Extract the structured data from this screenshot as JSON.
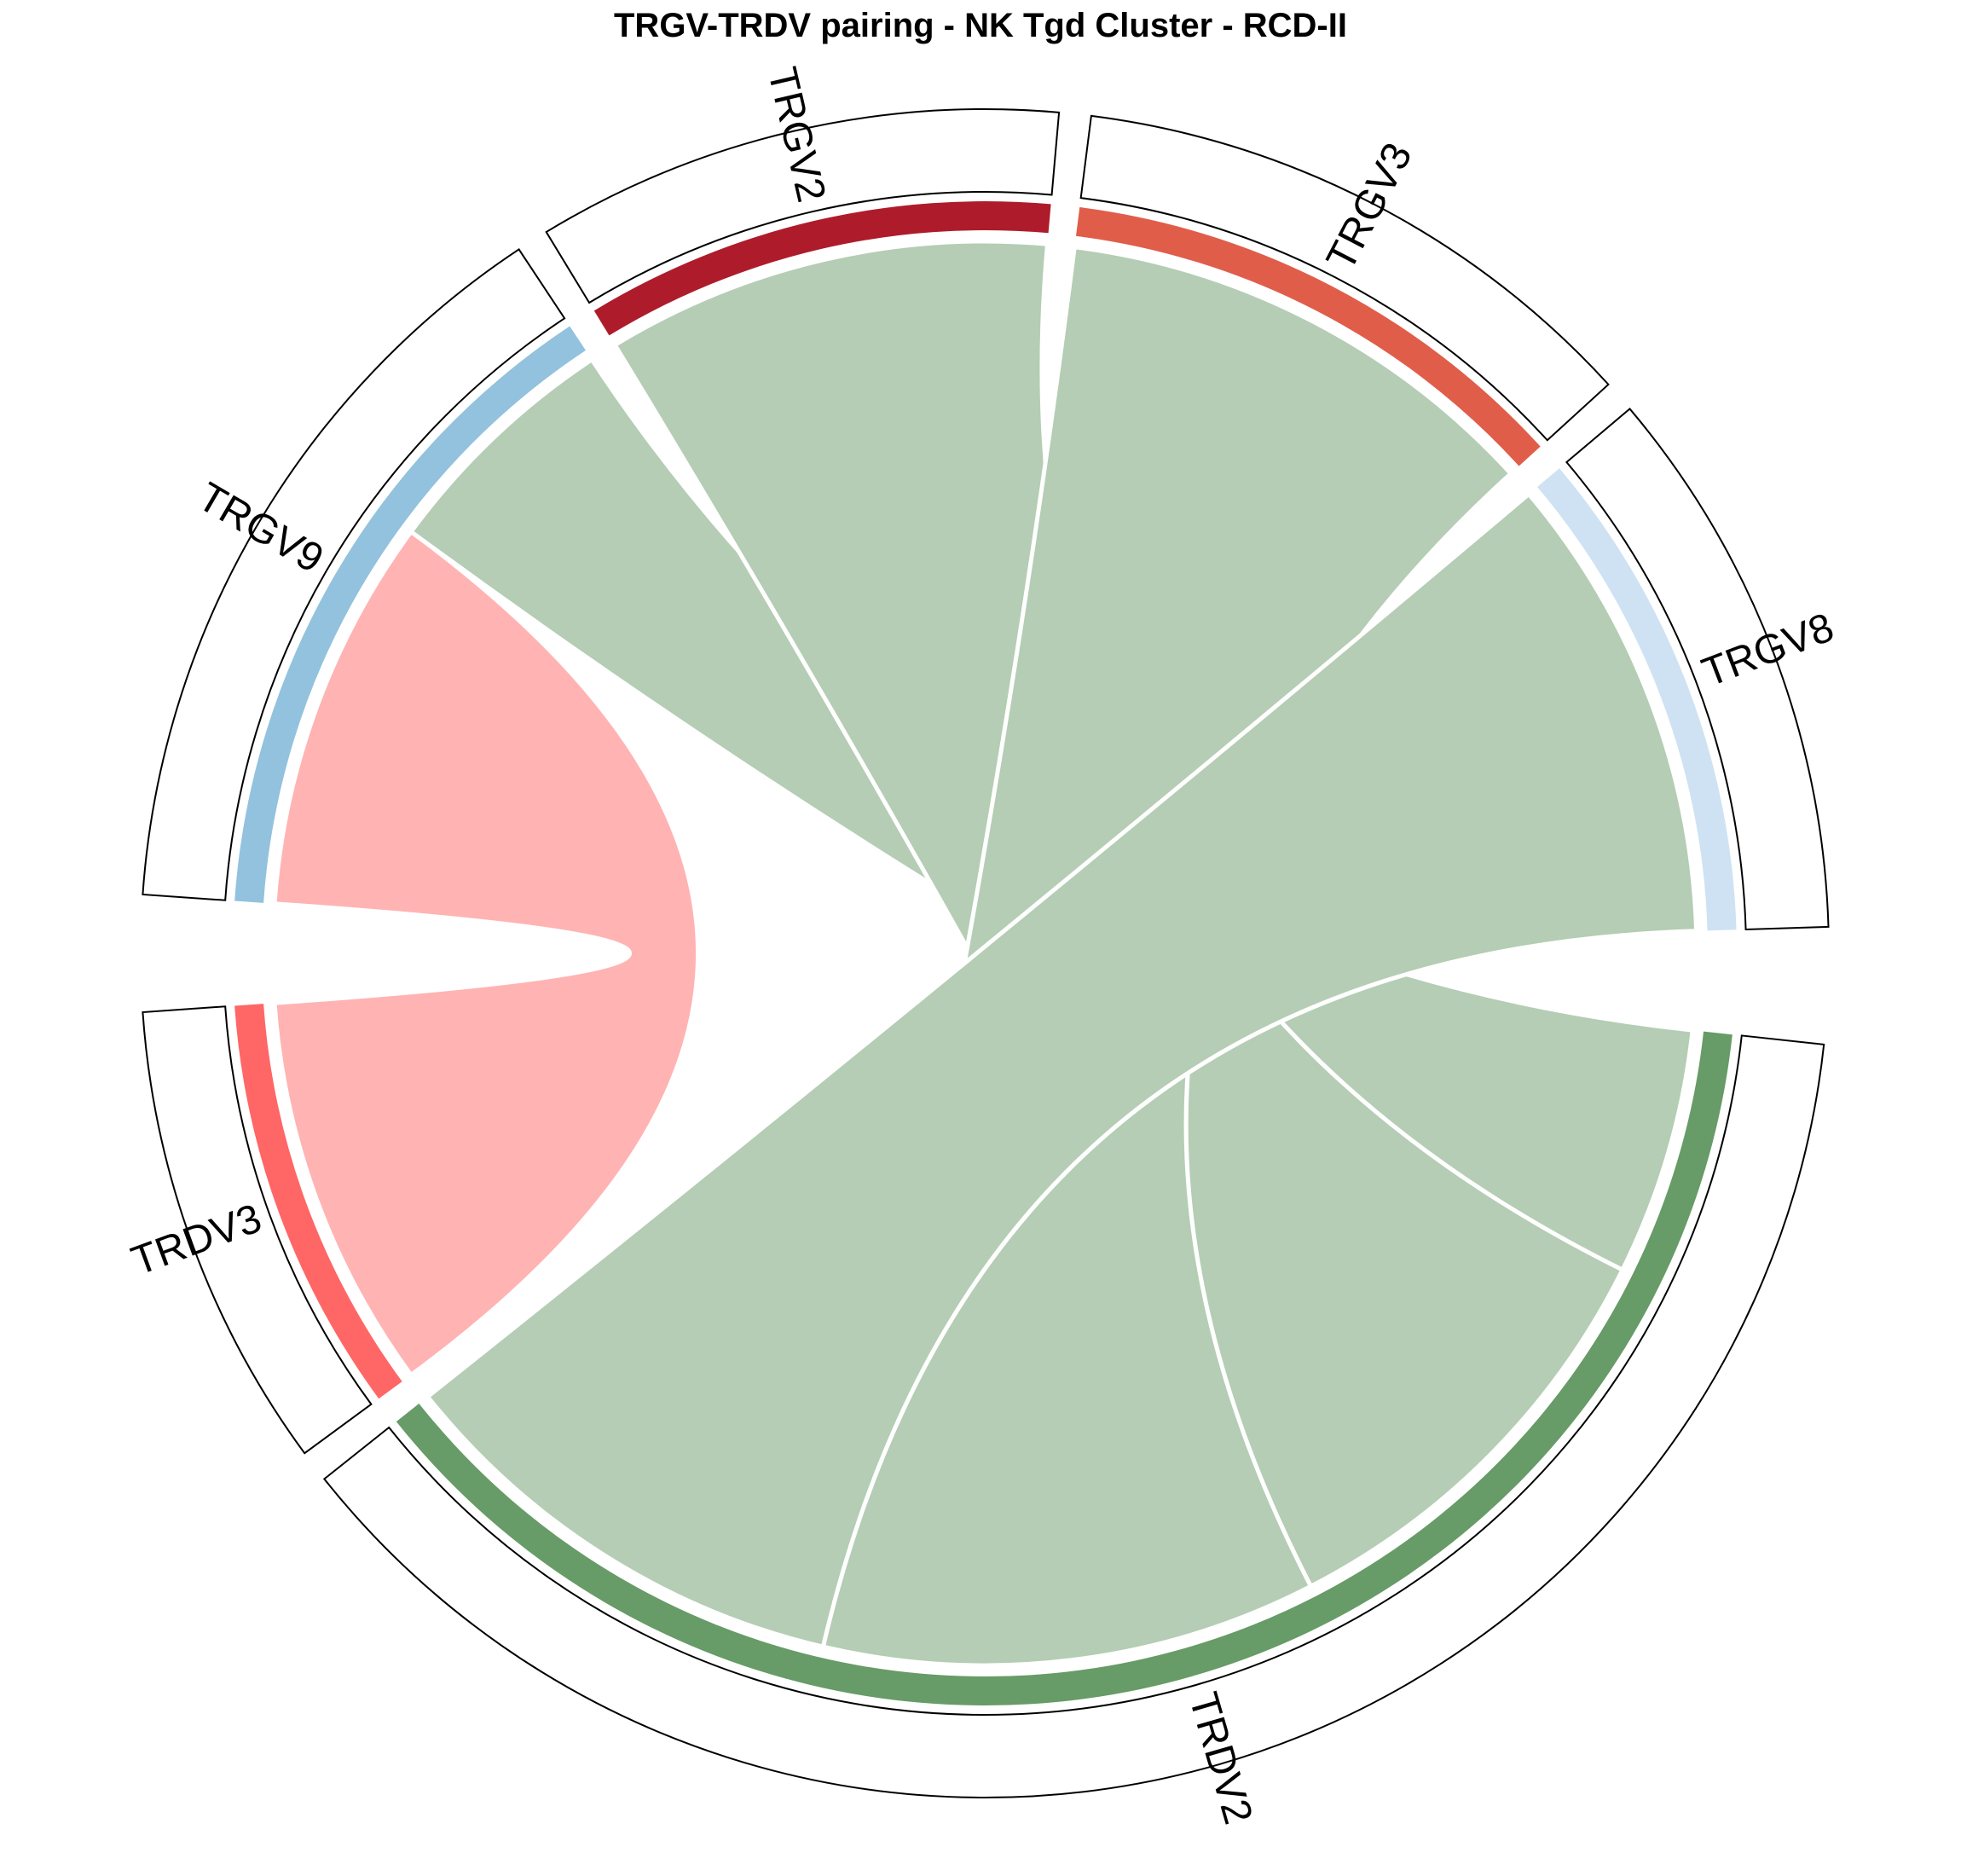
{
  "chart_data": {
    "type": "chord",
    "title": "TRGV-TRDV pairing - NK Tgd Cluster - RCD-II",
    "sectors": [
      {
        "name": "TRGV9",
        "group": "TRGV",
        "color": "#92C2DD"
      },
      {
        "name": "TRGV2",
        "group": "TRGV",
        "color": "#AE1C2B"
      },
      {
        "name": "TRGV3",
        "group": "TRGV",
        "color": "#E05D4A"
      },
      {
        "name": "TRGV8",
        "group": "TRGV",
        "color": "#CFE2F3"
      },
      {
        "name": "TRDV3",
        "group": "TRDV",
        "color": "#FF6666"
      },
      {
        "name": "TRDV2",
        "group": "TRDV",
        "color": "#679B67"
      }
    ],
    "links": [
      {
        "from": "TRGV9",
        "to": "TRDV3",
        "value": 16,
        "color": "#FFB3B3"
      },
      {
        "from": "TRGV9",
        "to": "TRDV2",
        "value": 10,
        "color": "#B4CDB4"
      },
      {
        "from": "TRGV2",
        "to": "TRDV2",
        "value": 18,
        "color": "#B4CDB4"
      },
      {
        "from": "TRGV3",
        "to": "TRDV2",
        "value": 20,
        "color": "#B4CDB4"
      },
      {
        "from": "TRGV8",
        "to": "TRDV2",
        "value": 19,
        "color": "#B4CDB4"
      }
    ]
  }
}
